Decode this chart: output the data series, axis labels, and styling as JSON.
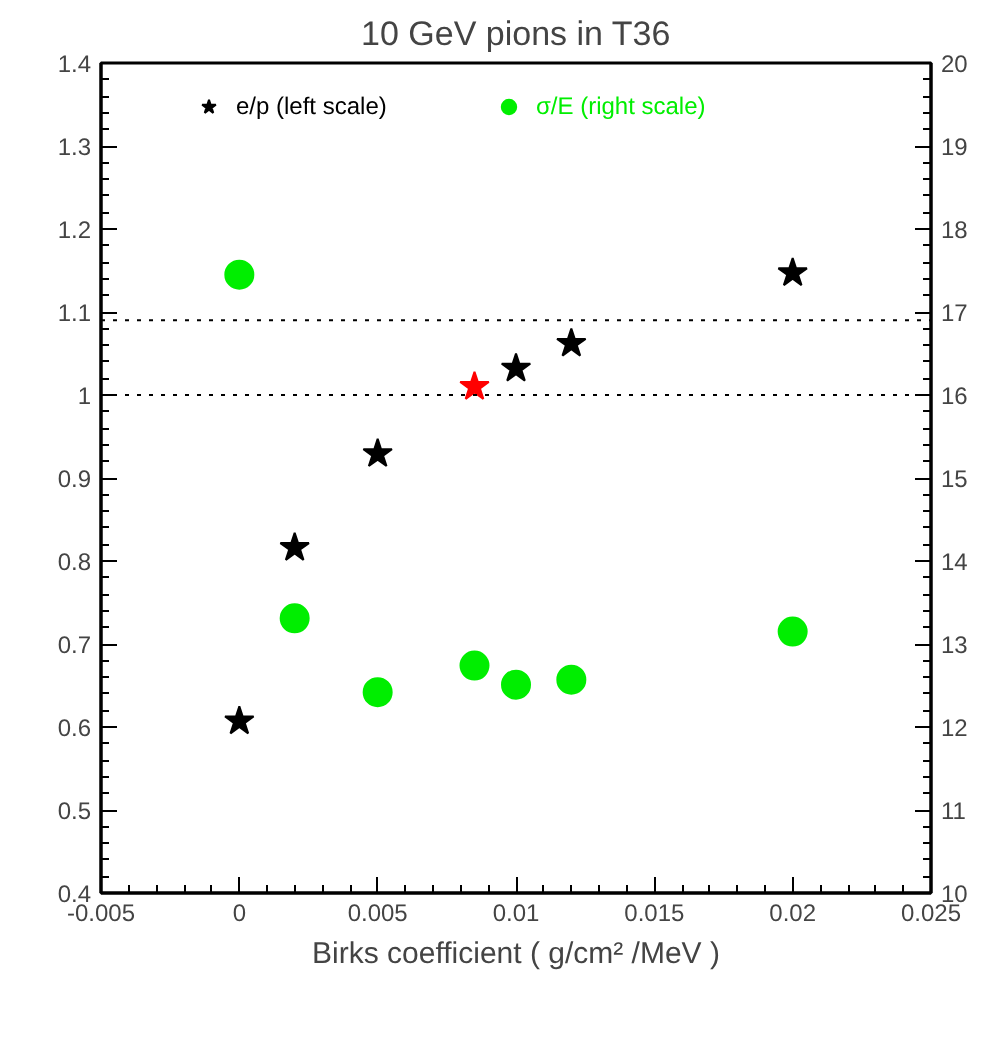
{
  "chart_data": {
    "type": "scatter",
    "title": "10 GeV pions in T36",
    "xlabel": "Birks coefficient ( g/cm² /MeV )",
    "x": [
      0,
      0.002,
      0.005,
      0.0085,
      0.01,
      0.012,
      0.02
    ],
    "series": [
      {
        "name": "e/p (left scale)",
        "color": "#000000",
        "marker": "star",
        "x": [
          0,
          0.002,
          0.005,
          0.01,
          0.012,
          0.02
        ],
        "values": [
          0.607,
          0.816,
          0.929,
          1.032,
          1.062,
          1.147
        ]
      },
      {
        "color": "#ff0000",
        "marker": "star",
        "x": [
          0.0085
        ],
        "values": [
          1.01
        ]
      },
      {
        "name": "σ/E (right scale)",
        "color": "#00ee00",
        "marker": "circle",
        "axis": "y2",
        "values": [
          17.45,
          13.31,
          12.42,
          12.74,
          12.51,
          12.57,
          13.15
        ]
      }
    ],
    "xlim": [
      -0.005,
      0.025
    ],
    "xticks": [
      -0.005,
      0,
      0.005,
      0.01,
      0.015,
      0.02,
      0.025
    ],
    "ylim": [
      0.4,
      1.4
    ],
    "yticks": [
      0.4,
      0.5,
      0.6,
      0.7,
      0.8,
      0.9,
      1,
      1.1,
      1.2,
      1.3,
      1.4
    ],
    "y2lim": [
      10,
      20
    ],
    "y2ticks": [
      10,
      11,
      12,
      13,
      14,
      15,
      16,
      17,
      18,
      19,
      20
    ],
    "ref_lines": [
      {
        "axis": "y",
        "value": 1,
        "line_style": "dotted",
        "color": "#000000"
      },
      {
        "axis": "y",
        "value": 1.09,
        "line_style": "dotted",
        "color": "#000000"
      }
    ],
    "grid": false,
    "legend": "top"
  }
}
